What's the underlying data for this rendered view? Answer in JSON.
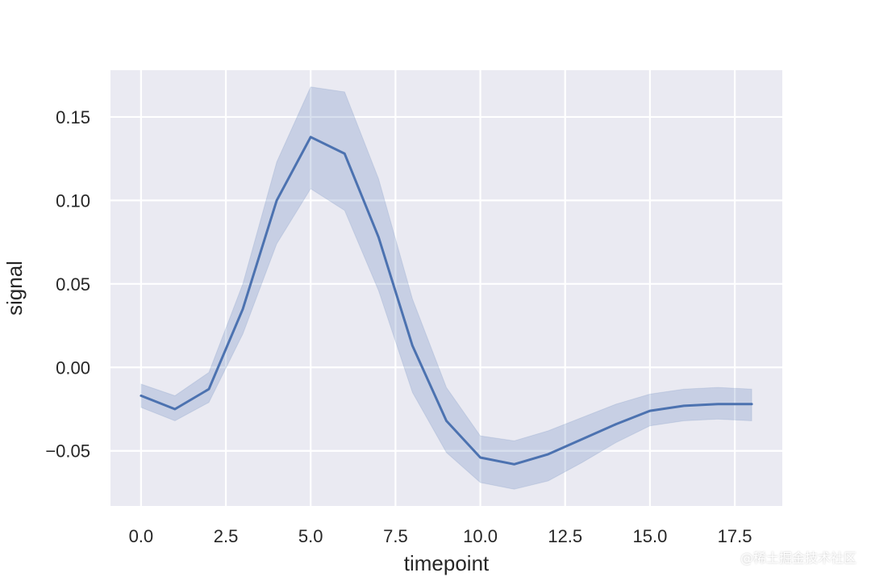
{
  "chart_data": {
    "type": "line",
    "xlabel": "timepoint",
    "ylabel": "signal",
    "xlim": [
      -0.9,
      18.9
    ],
    "ylim": [
      -0.083,
      0.178
    ],
    "xticks": [
      0.0,
      2.5,
      5.0,
      7.5,
      10.0,
      12.5,
      15.0,
      17.5
    ],
    "xtick_labels": [
      "0.0",
      "2.5",
      "5.0",
      "7.5",
      "10.0",
      "12.5",
      "15.0",
      "17.5"
    ],
    "yticks": [
      -0.05,
      0.0,
      0.05,
      0.1,
      0.15
    ],
    "ytick_labels": [
      "−0.05",
      "0.00",
      "0.05",
      "0.10",
      "0.15"
    ],
    "grid": true,
    "series": [
      {
        "x": [
          0,
          1,
          2,
          3,
          4,
          5,
          6,
          7,
          8,
          9,
          10,
          11,
          12,
          13,
          14,
          15,
          16,
          17,
          18
        ],
        "y": [
          -0.017,
          -0.025,
          -0.013,
          0.035,
          0.1,
          0.138,
          0.128,
          0.078,
          0.013,
          -0.032,
          -0.054,
          -0.058,
          -0.052,
          -0.043,
          -0.034,
          -0.026,
          -0.023,
          -0.022,
          -0.022
        ],
        "ci_low": [
          -0.024,
          -0.032,
          -0.021,
          0.02,
          0.074,
          0.107,
          0.094,
          0.046,
          -0.015,
          -0.051,
          -0.069,
          -0.073,
          -0.068,
          -0.057,
          -0.045,
          -0.035,
          -0.032,
          -0.031,
          -0.032
        ],
        "ci_high": [
          -0.01,
          -0.017,
          -0.003,
          0.05,
          0.123,
          0.168,
          0.165,
          0.113,
          0.041,
          -0.012,
          -0.041,
          -0.044,
          -0.038,
          -0.03,
          -0.022,
          -0.016,
          -0.013,
          -0.012,
          -0.013
        ]
      }
    ]
  },
  "colors": {
    "background": "#eaeaf2",
    "grid": "#ffffff",
    "line": "#4c72b0",
    "band": "#4c72b0"
  },
  "watermark": "@稀土掘金技术社区"
}
